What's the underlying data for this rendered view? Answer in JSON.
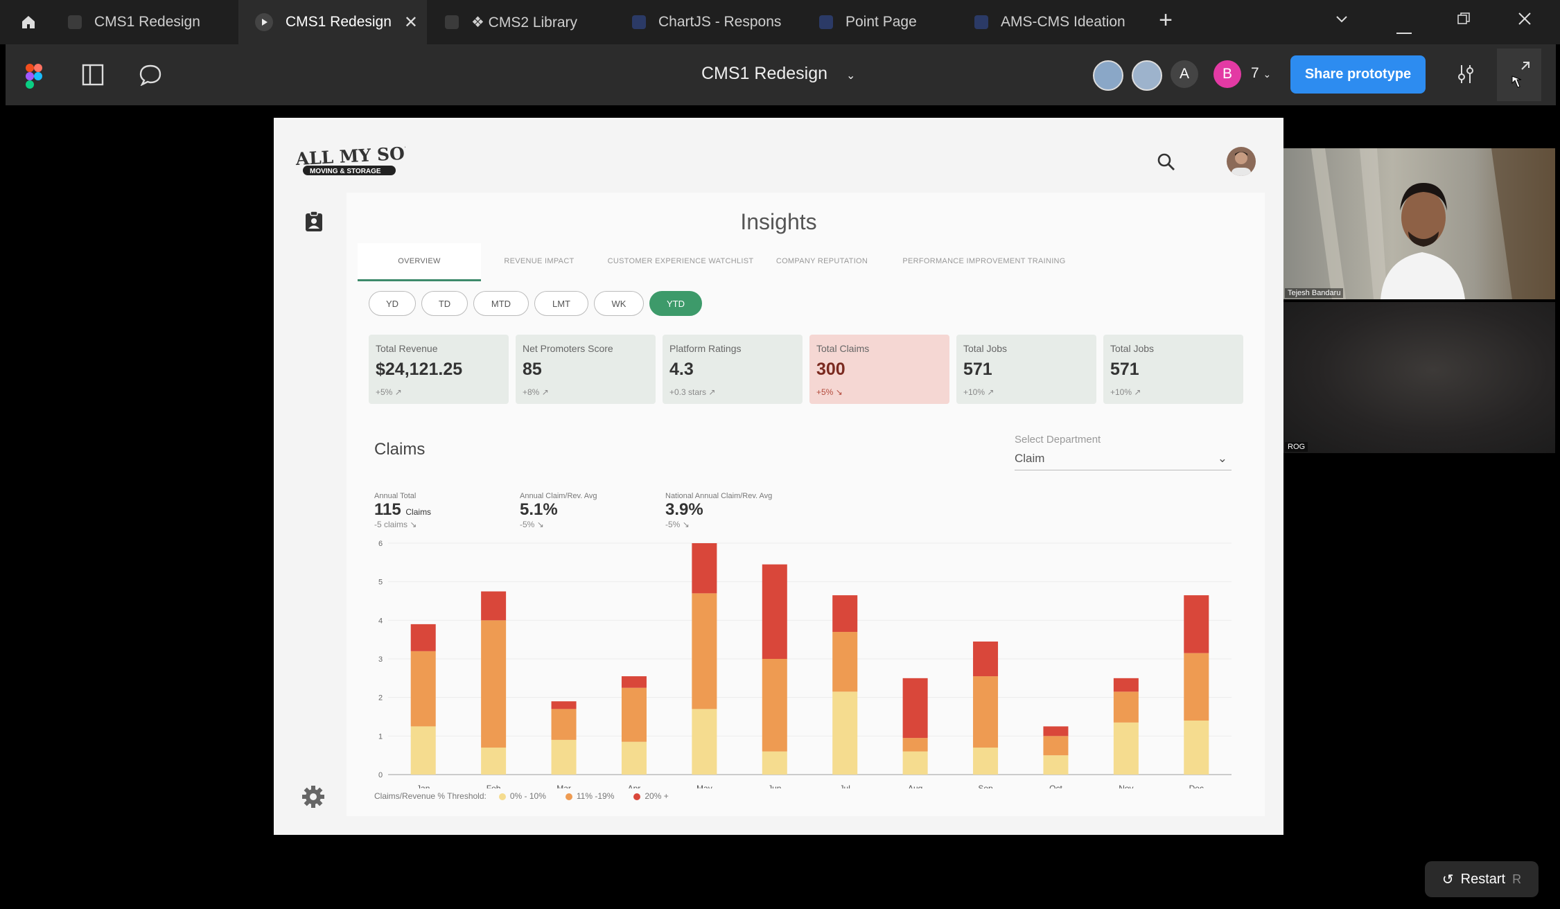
{
  "tabs": [
    {
      "label": "CMS1 Redesign",
      "active": false
    },
    {
      "label": "CMS1 Redesign",
      "active": true
    },
    {
      "label": "❖ CMS2 Library",
      "active": false
    },
    {
      "label": "ChartJS - Respons",
      "active": false
    },
    {
      "label": "Point Page",
      "active": false
    },
    {
      "label": "AMS-CMS Ideation",
      "active": false
    }
  ],
  "toolbar": {
    "title": "CMS1 Redesign",
    "avatar_a": "A",
    "avatar_b": "B",
    "collab_count": "7",
    "share_label": "Share prototype"
  },
  "app": {
    "logo_line1": "ALL MY SONS",
    "logo_line2": "MOVING & STORAGE",
    "page_title": "Insights",
    "nav_tabs": [
      "OVERVIEW",
      "REVENUE IMPACT",
      "CUSTOMER EXPERIENCE WATCHLIST",
      "COMPANY REPUTATION",
      "PERFORMANCE IMPROVEMENT TRAINING"
    ],
    "periods": [
      "YD",
      "TD",
      "MTD",
      "LMT",
      "WK",
      "YTD"
    ],
    "kpis": [
      {
        "label": "Total Revenue",
        "value": "$24,121.25",
        "change": "+5%"
      },
      {
        "label": "Net Promoters Score",
        "value": "85",
        "change": "+8%"
      },
      {
        "label": "Platform Ratings",
        "value": "4.3",
        "change": "+0.3 stars"
      },
      {
        "label": "Total Claims",
        "value": "300",
        "change": "+5%"
      },
      {
        "label": "Total Jobs",
        "value": "571",
        "change": "+10%"
      },
      {
        "label": "Total Jobs",
        "value": "571",
        "change": "+10%"
      }
    ],
    "claims": {
      "title": "Claims",
      "dept_label": "Select Department",
      "dept_value": "Claim",
      "stats": [
        {
          "label": "Annual Total",
          "value": "115",
          "unit": "Claims",
          "change": "-5 claims"
        },
        {
          "label": "Annual Claim/Rev. Avg",
          "value": "5.1%",
          "unit": "",
          "change": "-5%"
        },
        {
          "label": "National Annual Claim/Rev. Avg",
          "value": "3.9%",
          "unit": "",
          "change": "-5%"
        }
      ],
      "legend_label": "Claims/Revenue % Threshold:",
      "legend_items": [
        "0% - 10%",
        "11% -19%",
        "20% +"
      ]
    }
  },
  "colors": {
    "low": "#f5dc8f",
    "mid": "#ee9b52",
    "high": "#d9473a",
    "accent": "#3d9a6a"
  },
  "chart_data": {
    "type": "bar",
    "stacked": true,
    "categories": [
      "Jan",
      "Feb",
      "Mar",
      "Apr",
      "May",
      "Jun",
      "Jul",
      "Aug",
      "Sep",
      "Oct",
      "Nov",
      "Dec"
    ],
    "series": [
      {
        "name": "0% - 10%",
        "values": [
          1.25,
          0.7,
          0.9,
          0.85,
          1.7,
          0.6,
          2.15,
          0.6,
          0.7,
          0.5,
          1.35,
          1.4
        ]
      },
      {
        "name": "11% -19%",
        "values": [
          1.95,
          3.3,
          0.8,
          1.4,
          3.0,
          2.4,
          1.55,
          0.35,
          1.85,
          0.5,
          0.8,
          1.75
        ]
      },
      {
        "name": "20% +",
        "values": [
          0.7,
          0.75,
          0.2,
          0.3,
          1.3,
          2.45,
          0.95,
          1.55,
          0.9,
          0.25,
          0.35,
          1.5
        ]
      }
    ],
    "ylim": [
      0,
      6
    ],
    "yticks": [
      0,
      1,
      2,
      3,
      4,
      5,
      6
    ],
    "grid": true
  },
  "meeting": {
    "tile1_name": "Tejesh Bandaru",
    "tile2_name": "ROG"
  },
  "footer": {
    "restart_label": "Restart",
    "restart_key": "R"
  }
}
